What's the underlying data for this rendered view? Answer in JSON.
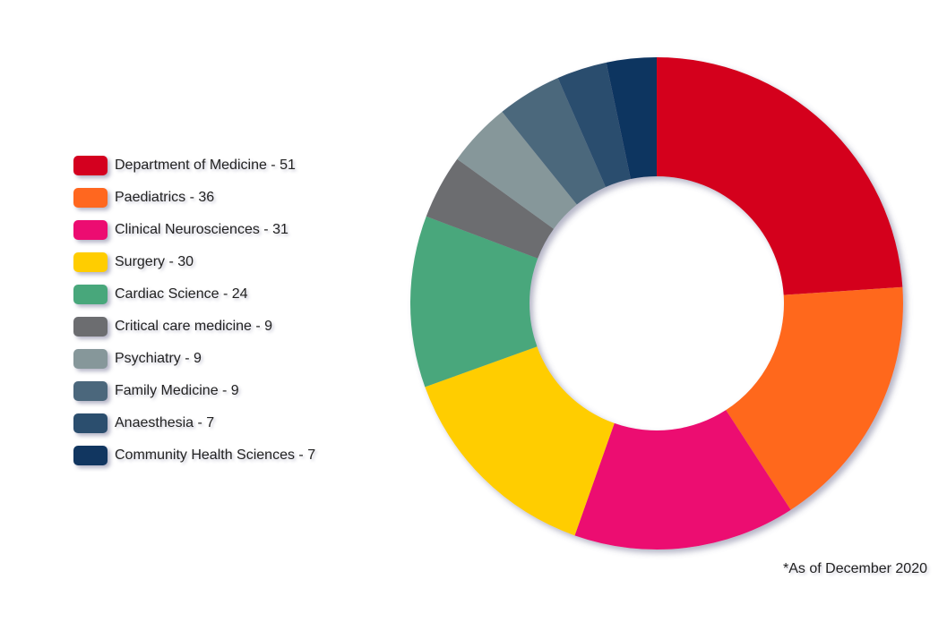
{
  "chart_data": {
    "type": "pie",
    "variant": "donut",
    "title": "",
    "legend_position": "left",
    "categories": [
      "Department of Medicine",
      "Paediatrics",
      "Clinical Neurosciences",
      "Surgery",
      "Cardiac Science",
      "Critical care medicine",
      "Psychiatry",
      "Family Medicine",
      "Anaesthesia",
      "Community Health Sciences"
    ],
    "values": [
      51,
      36,
      31,
      30,
      24,
      9,
      9,
      9,
      7,
      7
    ],
    "legend_labels": [
      "Department of Medicine - 51",
      "Paediatrics - 36",
      "Clinical Neurosciences - 31",
      "Surgery - 30",
      "Cardiac Science - 24",
      "Critical care medicine - 9",
      "Psychiatry - 9",
      "Family Medicine - 9",
      "Anaesthesia - 7",
      "Community Health Sciences - 7"
    ],
    "colors": [
      "#d4001f",
      "#ff671f",
      "#ec0c71",
      "#ffcd00",
      "#48a77b",
      "#6c6d70",
      "#86979a",
      "#4b677c",
      "#2b4e6e",
      "#113660"
    ],
    "footnote": "*As of December 2020"
  }
}
